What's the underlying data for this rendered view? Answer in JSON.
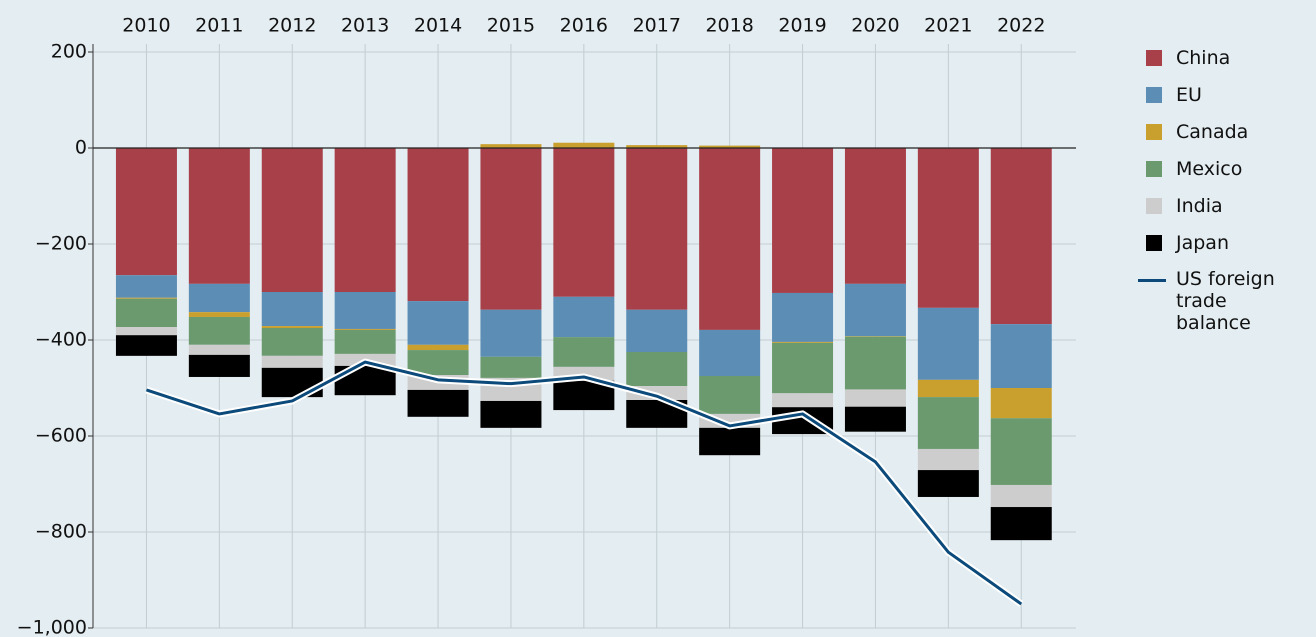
{
  "chart_data": {
    "type": "bar",
    "stacked": true,
    "categories": [
      "2010",
      "2011",
      "2012",
      "2013",
      "2014",
      "2015",
      "2016",
      "2017",
      "2018",
      "2019",
      "2020",
      "2021",
      "2022"
    ],
    "series": [
      {
        "name": "China",
        "color": "#a8404a",
        "values": [
          -265,
          -283,
          -300,
          -300,
          -319,
          -337,
          -310,
          -337,
          -379,
          -302,
          -283,
          -333,
          -367
        ]
      },
      {
        "name": "EU",
        "color": "#5b8db5",
        "values": [
          -47,
          -59,
          -71,
          -77,
          -91,
          -98,
          -84,
          -88,
          -96,
          -102,
          -109,
          -150,
          -133
        ]
      },
      {
        "name": "Canada",
        "color": "#c9a02e",
        "values": [
          -2,
          -10,
          -4,
          -2,
          -11,
          8,
          11,
          6,
          5,
          -2,
          -1,
          -36,
          -63
        ]
      },
      {
        "name": "Mexico",
        "color": "#6a9a6e",
        "values": [
          -59,
          -58,
          -58,
          -50,
          -52,
          -44,
          -62,
          -71,
          -79,
          -105,
          -110,
          -108,
          -139
        ]
      },
      {
        "name": "India",
        "color": "#cdcdcd",
        "values": [
          -17,
          -21,
          -25,
          -25,
          -31,
          -48,
          -29,
          -29,
          -29,
          -29,
          -36,
          -44,
          -46
        ]
      },
      {
        "name": "Japan",
        "color": "#000000",
        "values": [
          -43,
          -46,
          -61,
          -61,
          -56,
          -56,
          -61,
          -58,
          -57,
          -56,
          -52,
          -56,
          -69
        ]
      },
      {
        "name": "US foreign trade balance",
        "type": "line",
        "color": "#0b4a7a",
        "values": [
          -504,
          -554,
          -527,
          -446,
          -483,
          -491,
          -477,
          -517,
          -579,
          -554,
          -654,
          -842,
          -950
        ]
      }
    ],
    "ylim": [
      -1000,
      200
    ],
    "yticks": [
      200,
      0,
      {
        "value": -200,
        "label": "−200"
      },
      {
        "value": -400,
        "label": "−400"
      },
      {
        "value": -600,
        "label": "−600"
      },
      {
        "value": -800,
        "label": "−800"
      },
      {
        "value": -1000,
        "label": "−1,000"
      }
    ],
    "grid": true,
    "legend": "right"
  }
}
